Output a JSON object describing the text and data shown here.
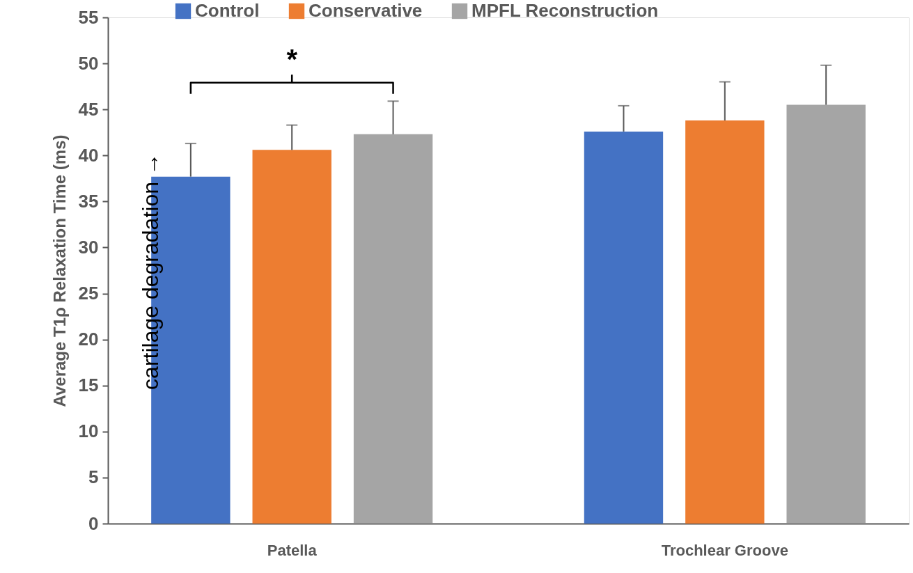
{
  "chart_data": {
    "type": "bar",
    "categories": [
      "Patella",
      "Trochlear Groove"
    ],
    "ylabel": "Average T1ρ Relaxation Time (ms)",
    "ylim": [
      0,
      55
    ],
    "yticks": [
      0,
      5,
      10,
      15,
      20,
      25,
      30,
      35,
      40,
      45,
      50,
      55
    ],
    "grid": false,
    "legend": "top",
    "series": [
      {
        "name": "Control",
        "color": "#4472c4",
        "values": [
          37.7,
          42.6
        ],
        "errors": [
          [
            37.7,
            41.3
          ],
          [
            42.6,
            45.4
          ]
        ]
      },
      {
        "name": "Conservative",
        "color": "#ed7d31",
        "values": [
          40.6,
          43.8
        ],
        "errors": [
          [
            40.6,
            43.3
          ],
          [
            43.8,
            48.0
          ]
        ]
      },
      {
        "name": "MPFL Reconstruction",
        "color": "#a5a5a5",
        "values": [
          42.3,
          45.5
        ],
        "errors": [
          [
            42.3,
            45.9
          ],
          [
            45.5,
            49.8
          ]
        ]
      }
    ],
    "annotations": [
      "*",
      "cartilage degradation →"
    ]
  }
}
